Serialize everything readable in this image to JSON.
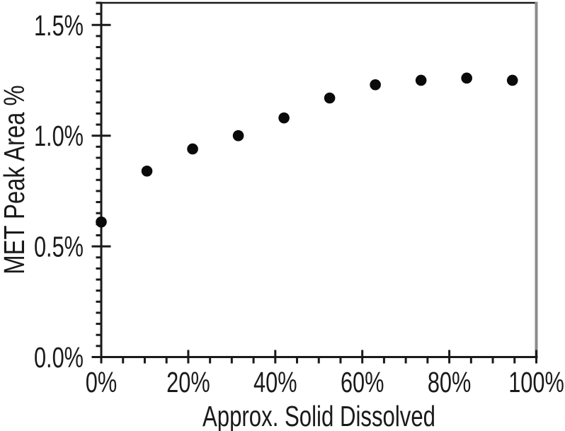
{
  "chart_data": {
    "type": "scatter",
    "title": "",
    "xlabel": "Approx. Solid Dissolved",
    "ylabel": "MET Peak Area %",
    "xlim": [
      0,
      100
    ],
    "ylim": [
      0,
      1.6
    ],
    "x_major_ticks": [
      0,
      20,
      40,
      60,
      80,
      100
    ],
    "x_tick_labels": [
      "0%",
      "20%",
      "40%",
      "60%",
      "80%",
      "100%"
    ],
    "x_minor_step": 5,
    "y_major_ticks": [
      0,
      0.5,
      1.0,
      1.5
    ],
    "y_tick_labels": [
      "0.0%",
      "0.5%",
      "1.0%",
      "1.5%"
    ],
    "y_minor_step": 0.05,
    "grid": false,
    "legend": false,
    "marker": {
      "shape": "filled-circle",
      "radius_px": 7.8,
      "color": "#0a0a0a"
    },
    "series": [
      {
        "points": [
          {
            "x": 0,
            "y": 0.61
          },
          {
            "x": 10.5,
            "y": 0.84
          },
          {
            "x": 21,
            "y": 0.94
          },
          {
            "x": 31.5,
            "y": 1.0
          },
          {
            "x": 42,
            "y": 1.08
          },
          {
            "x": 52.5,
            "y": 1.17
          },
          {
            "x": 63,
            "y": 1.23
          },
          {
            "x": 73.5,
            "y": 1.25
          },
          {
            "x": 84,
            "y": 1.26
          },
          {
            "x": 94.5,
            "y": 1.25
          }
        ]
      }
    ],
    "colors": {
      "marker": "#0a0a0a",
      "axis": "#1a1a1a",
      "text": "#1a1a1a",
      "plot_right_border": "#8b8b8b",
      "background": "#ffffff"
    }
  }
}
